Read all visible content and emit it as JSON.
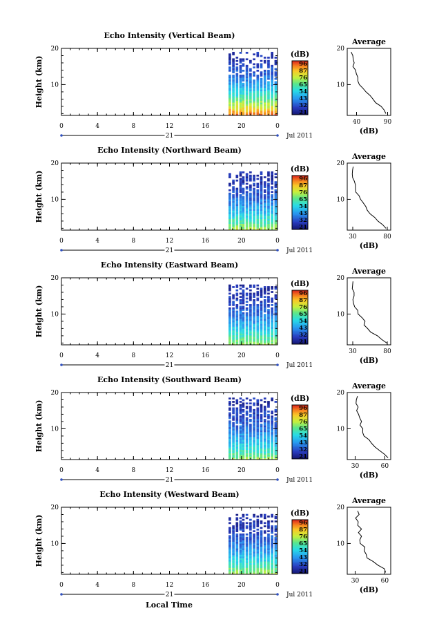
{
  "chart_data": {
    "type": "heatmap",
    "x_label": "Local Time",
    "date_label": "Jul 2011",
    "day_label": "21",
    "y_label": "Height (km)",
    "time_ticks": [
      "0",
      "4",
      "8",
      "12",
      "16",
      "20",
      "0"
    ],
    "xlim": [
      0,
      24
    ],
    "height_ticks": [
      "20",
      "10"
    ],
    "ylim": [
      1.5,
      20
    ],
    "colorbar": {
      "unit": "(dB)",
      "ticks": [
        "96",
        "87",
        "76",
        "65",
        "54",
        "43",
        "32",
        "21"
      ],
      "range": [
        21,
        96
      ]
    },
    "avg_label": "(dB)",
    "avg_title": "Average",
    "data_columns_hours": [
      18.7,
      19.1,
      19.5,
      19.9,
      20.2,
      20.6,
      21.0,
      21.4,
      21.8,
      22.2,
      22.6,
      23.0,
      23.4,
      23.8
    ],
    "panels": [
      {
        "title": "Echo Intensity (Vertical Beam)",
        "avg_ticks": [
          "40",
          "90"
        ],
        "avg_xlim": [
          25,
          95
        ],
        "avg_profile": {
          "height": [
            2,
            3,
            4,
            5,
            6,
            7,
            8,
            9,
            10,
            11,
            12,
            13,
            14,
            15,
            16,
            17,
            18,
            19
          ],
          "db": [
            88,
            84,
            78,
            72,
            66,
            60,
            55,
            50,
            46,
            42,
            44,
            38,
            40,
            35,
            38,
            33,
            36,
            32
          ]
        },
        "top_km": 19,
        "max_db": 90
      },
      {
        "title": "Echo Intensity (Northward Beam)",
        "avg_ticks": [
          "30",
          "80"
        ],
        "avg_xlim": [
          22,
          85
        ],
        "avg_profile": {
          "height": [
            2,
            3,
            4,
            5,
            6,
            7,
            8,
            9,
            10,
            11,
            12,
            13,
            14,
            15,
            16,
            17,
            18,
            19
          ],
          "db": [
            80,
            74,
            68,
            62,
            56,
            52,
            48,
            44,
            40,
            38,
            36,
            34,
            32,
            33,
            30,
            31,
            29,
            30
          ]
        },
        "top_km": 17.5,
        "max_db": 72
      },
      {
        "title": "Echo Intensity (Eastward Beam)",
        "avg_ticks": [
          "30",
          "80"
        ],
        "avg_xlim": [
          22,
          85
        ],
        "avg_profile": {
          "height": [
            2,
            3,
            4,
            5,
            6,
            7,
            8,
            9,
            10,
            11,
            12,
            13,
            14,
            15,
            16,
            17,
            18,
            19
          ],
          "db": [
            80,
            72,
            64,
            56,
            52,
            48,
            46,
            42,
            38,
            36,
            34,
            33,
            32,
            31,
            30,
            31,
            29,
            30
          ]
        },
        "top_km": 18,
        "max_db": 70
      },
      {
        "title": "Echo Intensity (Southward Beam)",
        "avg_ticks": [
          "30",
          "60"
        ],
        "avg_xlim": [
          22,
          66
        ],
        "avg_profile": {
          "height": [
            2,
            3,
            4,
            5,
            6,
            7,
            8,
            9,
            10,
            11,
            12,
            13,
            14,
            15,
            16,
            17,
            18,
            19
          ],
          "db": [
            62,
            58,
            54,
            50,
            46,
            42,
            40,
            38,
            36,
            34,
            35,
            33,
            34,
            32,
            33,
            31,
            32,
            31
          ]
        },
        "top_km": 18.5,
        "max_db": 68
      },
      {
        "title": "Echo Intensity (Westward Beam)",
        "avg_ticks": [
          "30",
          "60"
        ],
        "avg_xlim": [
          22,
          66
        ],
        "avg_profile": {
          "height": [
            2,
            3,
            4,
            5,
            6,
            7,
            8,
            9,
            10,
            11,
            12,
            13,
            14,
            15,
            16,
            17,
            18,
            19
          ],
          "db": [
            62,
            58,
            52,
            48,
            44,
            42,
            40,
            38,
            36,
            34,
            37,
            33,
            35,
            32,
            34,
            31,
            33,
            31
          ]
        },
        "top_km": 18,
        "max_db": 70
      }
    ]
  }
}
